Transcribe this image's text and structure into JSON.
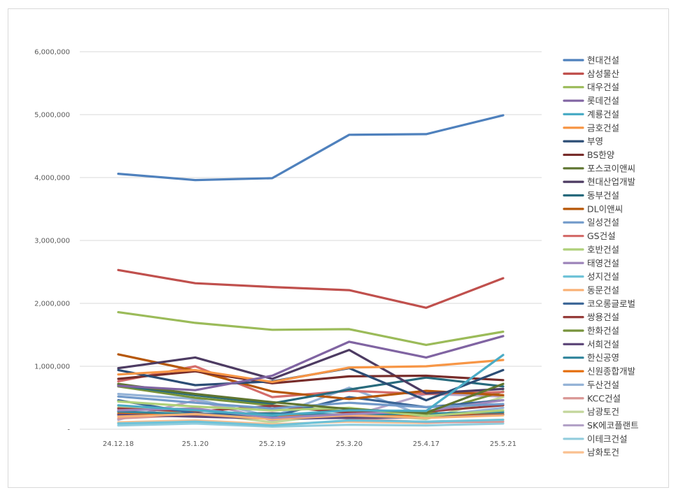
{
  "chart_data": {
    "type": "line",
    "title": "",
    "xlabel": "",
    "ylabel": "",
    "ylim": [
      0,
      6000000
    ],
    "yticks": [
      {
        "value": 0,
        "label": "-"
      },
      {
        "value": 1000000,
        "label": "1,000,000"
      },
      {
        "value": 2000000,
        "label": "2,000,000"
      },
      {
        "value": 3000000,
        "label": "3,000,000"
      },
      {
        "value": 4000000,
        "label": "4,000,000"
      },
      {
        "value": 5000000,
        "label": "5,000,000"
      },
      {
        "value": 6000000,
        "label": "6,000,000"
      }
    ],
    "grid": true,
    "legend_position": "right",
    "categories": [
      "24.12.18",
      "25.1.20",
      "25.2.19",
      "25.3.20",
      "25.4.17",
      "25.5.21"
    ],
    "series": [
      {
        "name": "현대건설",
        "color": "#4f81bd",
        "values": [
          4060000,
          3960000,
          3990000,
          4680000,
          4690000,
          4990000
        ]
      },
      {
        "name": "삼성물산",
        "color": "#c0504d",
        "values": [
          2530000,
          2320000,
          2260000,
          2210000,
          1930000,
          2400000
        ]
      },
      {
        "name": "대우건설",
        "color": "#9bbb59",
        "values": [
          1860000,
          1690000,
          1580000,
          1590000,
          1340000,
          1550000
        ]
      },
      {
        "name": "롯데건설",
        "color": "#8064a2",
        "values": [
          690000,
          620000,
          850000,
          1390000,
          1140000,
          1480000
        ]
      },
      {
        "name": "계룡건설",
        "color": "#4bacc6",
        "values": [
          380000,
          300000,
          220000,
          300000,
          290000,
          1180000
        ]
      },
      {
        "name": "금호건설",
        "color": "#f79646",
        "values": [
          870000,
          940000,
          750000,
          980000,
          1000000,
          1100000
        ]
      },
      {
        "name": "부영",
        "color": "#2c4d75",
        "values": [
          940000,
          700000,
          760000,
          970000,
          460000,
          940000
        ]
      },
      {
        "name": "BS한양",
        "color": "#772c2a",
        "values": [
          800000,
          920000,
          730000,
          840000,
          850000,
          780000
        ]
      },
      {
        "name": "포스코이앤씨",
        "color": "#5f7530",
        "values": [
          720000,
          560000,
          430000,
          320000,
          260000,
          720000
        ]
      },
      {
        "name": "현대산업개발",
        "color": "#4d3b62",
        "values": [
          970000,
          1140000,
          800000,
          1260000,
          570000,
          640000
        ]
      },
      {
        "name": "동부건설",
        "color": "#276a7c",
        "values": [
          700000,
          540000,
          410000,
          630000,
          820000,
          680000
        ]
      },
      {
        "name": "DL이앤씨",
        "color": "#b65708",
        "values": [
          1190000,
          930000,
          600000,
          480000,
          610000,
          540000
        ]
      },
      {
        "name": "일성건설",
        "color": "#729aca",
        "values": [
          520000,
          420000,
          330000,
          420000,
          350000,
          400000
        ]
      },
      {
        "name": "GS건설",
        "color": "#d46c6a",
        "values": [
          760000,
          1000000,
          510000,
          610000,
          560000,
          590000
        ]
      },
      {
        "name": "호반건설",
        "color": "#afd07a",
        "values": [
          440000,
          360000,
          300000,
          340000,
          210000,
          300000
        ]
      },
      {
        "name": "태영건설",
        "color": "#9f86bb",
        "values": [
          300000,
          330000,
          180000,
          240000,
          290000,
          460000
        ]
      },
      {
        "name": "성지건설",
        "color": "#6fc3d8",
        "values": [
          90000,
          120000,
          60000,
          140000,
          120000,
          150000
        ]
      },
      {
        "name": "동문건설",
        "color": "#f9b074",
        "values": [
          200000,
          240000,
          160000,
          220000,
          180000,
          220000
        ]
      },
      {
        "name": "코오롱글로벌",
        "color": "#3a6596",
        "values": [
          460000,
          250000,
          200000,
          510000,
          350000,
          460000
        ]
      },
      {
        "name": "쌍용건설",
        "color": "#963c3a",
        "values": [
          330000,
          280000,
          370000,
          260000,
          280000,
          380000
        ]
      },
      {
        "name": "한화건설",
        "color": "#77933c",
        "values": [
          680000,
          500000,
          380000,
          280000,
          240000,
          600000
        ]
      },
      {
        "name": "서희건설",
        "color": "#604a7b",
        "values": [
          230000,
          200000,
          170000,
          180000,
          190000,
          230000
        ]
      },
      {
        "name": "한신공영",
        "color": "#31859c",
        "values": [
          280000,
          240000,
          250000,
          230000,
          250000,
          270000
        ]
      },
      {
        "name": "신원종합개발",
        "color": "#e46c0a",
        "values": [
          250000,
          210000,
          220000,
          200000,
          210000,
          240000
        ]
      },
      {
        "name": "두산건설",
        "color": "#95b3d7",
        "values": [
          560000,
          480000,
          200000,
          660000,
          200000,
          340000
        ]
      },
      {
        "name": "KCC건설",
        "color": "#d99694",
        "values": [
          170000,
          230000,
          260000,
          170000,
          110000,
          120000
        ]
      },
      {
        "name": "남광토건",
        "color": "#c3d69b",
        "values": [
          350000,
          260000,
          110000,
          260000,
          160000,
          510000
        ]
      },
      {
        "name": "SK에코플랜트",
        "color": "#b3a2c7",
        "values": [
          150000,
          460000,
          140000,
          200000,
          560000,
          520000
        ]
      },
      {
        "name": "이테크건설",
        "color": "#93cddd",
        "values": [
          60000,
          90000,
          40000,
          70000,
          60000,
          90000
        ]
      },
      {
        "name": "남화토건",
        "color": "#fac090",
        "values": [
          110000,
          140000,
          80000,
          120000,
          100000,
          150000
        ]
      }
    ]
  }
}
